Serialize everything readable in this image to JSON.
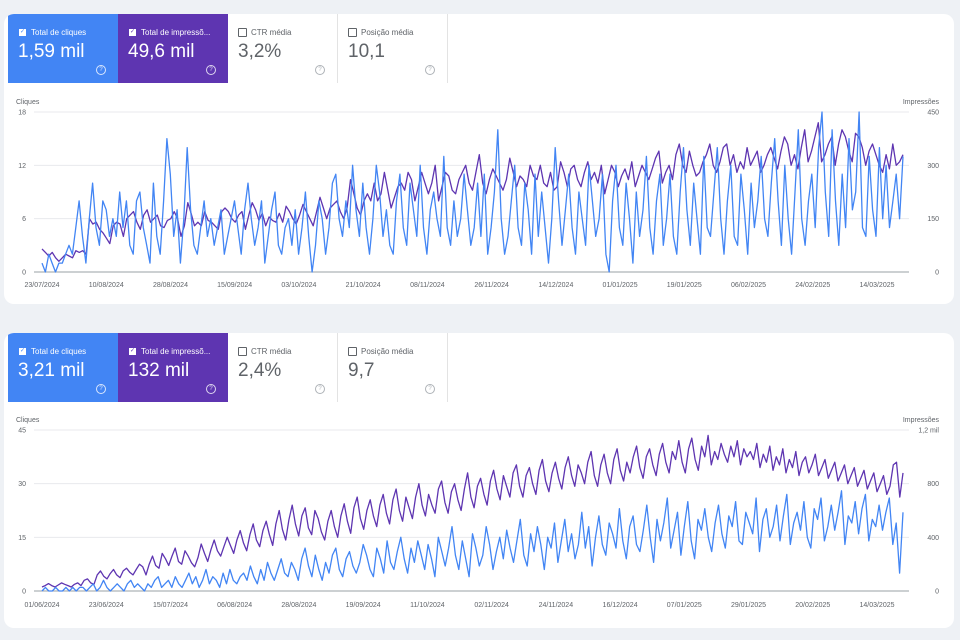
{
  "panels": [
    {
      "cards": [
        {
          "label": "Total de cliques",
          "value": "1,59 mil",
          "checked": true
        },
        {
          "label": "Total de impressõ...",
          "value": "49,6 mil",
          "checked": true
        },
        {
          "label": "CTR média",
          "value": "3,2%",
          "checked": false
        },
        {
          "label": "Posição média",
          "value": "10,1",
          "checked": false
        }
      ]
    },
    {
      "cards": [
        {
          "label": "Total de cliques",
          "value": "3,21 mil",
          "checked": true
        },
        {
          "label": "Total de impressõ...",
          "value": "132 mil",
          "checked": true
        },
        {
          "label": "CTR média",
          "value": "2,4%",
          "checked": false
        },
        {
          "label": "Posição média",
          "value": "9,7",
          "checked": false
        }
      ]
    }
  ],
  "colors": {
    "clicks": "#4285f4",
    "impressions": "#5e35b1",
    "grid": "#e8eaed"
  },
  "chart_data": [
    {
      "type": "line",
      "left_axis_label": "Cliques",
      "right_axis_label": "Impressões",
      "y_left_ticks": [
        "0",
        "6",
        "12",
        "18"
      ],
      "y_right_ticks": [
        "0",
        "150",
        "300",
        "450"
      ],
      "ylim_left": [
        0,
        18
      ],
      "ylim_right": [
        0,
        450
      ],
      "x_tick_labels": [
        "23/07/2024",
        "10/08/2024",
        "28/08/2024",
        "15/09/2024",
        "03/10/2024",
        "21/10/2024",
        "08/11/2024",
        "26/11/2024",
        "14/12/2024",
        "01/01/2025",
        "19/01/2025",
        "06/02/2025",
        "24/02/2025",
        "14/03/2025"
      ],
      "series": [
        {
          "name": "Cliques",
          "axis": "left",
          "values": [
            1,
            0,
            2,
            1,
            0,
            1,
            1,
            2,
            3,
            2,
            5,
            8,
            4,
            1,
            6,
            10,
            5,
            3,
            8,
            7,
            4,
            6,
            4,
            9,
            5,
            8,
            3,
            2,
            8,
            9,
            5,
            3,
            1,
            10,
            4,
            2,
            8,
            15,
            11,
            4,
            7,
            1,
            6,
            14,
            7,
            3,
            2,
            5,
            8,
            4,
            6,
            3,
            5,
            7,
            2,
            4,
            6,
            8,
            5,
            2,
            7,
            10,
            6,
            3,
            5,
            8,
            1,
            4,
            7,
            9,
            3,
            2,
            5,
            6,
            3,
            7,
            2,
            5,
            9,
            4,
            0,
            3,
            8,
            6,
            2,
            5,
            10,
            11,
            6,
            4,
            8,
            5,
            12,
            7,
            4,
            10,
            5,
            2,
            6,
            12,
            9,
            4,
            7,
            3,
            2,
            8,
            11,
            5,
            3,
            10,
            7,
            4,
            12,
            5,
            2,
            7,
            9,
            6,
            4,
            13,
            5,
            3,
            8,
            4,
            6,
            11,
            7,
            3,
            5,
            10,
            4,
            11,
            2,
            5,
            9,
            16,
            6,
            2,
            4,
            8,
            12,
            5,
            3,
            10,
            7,
            2,
            11,
            4,
            9,
            5,
            1,
            6,
            14,
            8,
            3,
            7,
            11,
            5,
            2,
            9,
            6,
            3,
            12,
            8,
            4,
            6,
            11,
            2,
            0,
            8,
            12,
            5,
            3,
            10,
            6,
            1,
            9,
            4,
            7,
            13,
            5,
            2,
            8,
            11,
            3,
            6,
            11,
            4,
            2,
            9,
            14,
            7,
            3,
            10,
            6,
            2,
            13,
            5,
            4,
            9,
            14,
            6,
            2,
            8,
            12,
            4,
            3,
            11,
            7,
            2,
            10,
            5,
            8,
            13,
            6,
            4,
            10,
            15,
            8,
            3,
            12,
            6,
            2,
            9,
            16,
            6,
            3,
            8,
            11,
            5,
            14,
            18,
            9,
            4,
            16,
            8,
            3,
            11,
            5,
            15,
            7,
            9,
            18,
            5,
            4,
            13,
            7,
            4,
            14,
            6,
            12,
            5,
            8,
            11,
            6,
            13
          ]
        },
        {
          "name": "Impressões",
          "axis": "right",
          "values": [
            65,
            55,
            45,
            55,
            40,
            30,
            40,
            50,
            45,
            40,
            60,
            55,
            60,
            50,
            150,
            135,
            140,
            120,
            110,
            95,
            80,
            130,
            140,
            135,
            100,
            150,
            160,
            170,
            140,
            120,
            160,
            175,
            140,
            150,
            160,
            130,
            125,
            145,
            150,
            170,
            150,
            100,
            130,
            195,
            165,
            130,
            140,
            130,
            170,
            145,
            140,
            130,
            120,
            170,
            180,
            170,
            150,
            140,
            160,
            170,
            120,
            160,
            195,
            175,
            145,
            165,
            130,
            155,
            145,
            140,
            165,
            140,
            185,
            170,
            150,
            135,
            160,
            190,
            170,
            150,
            130,
            170,
            210,
            180,
            150,
            180,
            190,
            200,
            170,
            150,
            180,
            260,
            220,
            180,
            160,
            200,
            220,
            200,
            250,
            200,
            220,
            280,
            230,
            180,
            210,
            240,
            250,
            230,
            280,
            260,
            200,
            240,
            280,
            250,
            220,
            250,
            300,
            200,
            240,
            280,
            270,
            230,
            220,
            260,
            280,
            300,
            250,
            230,
            280,
            330,
            250,
            220,
            260,
            290,
            270,
            250,
            230,
            260,
            320,
            280,
            240,
            270,
            260,
            240,
            300,
            270,
            260,
            300,
            250,
            240,
            280,
            230,
            240,
            310,
            280,
            240,
            290,
            300,
            260,
            240,
            280,
            310,
            260,
            280,
            250,
            300,
            220,
            260,
            300,
            280,
            240,
            270,
            290,
            260,
            310,
            240,
            270,
            300,
            280,
            260,
            290,
            320,
            340,
            250,
            280,
            300,
            260,
            330,
            360,
            300,
            280,
            340,
            300,
            270,
            280,
            310,
            330,
            360,
            300,
            280,
            310,
            350,
            360,
            300,
            330,
            280,
            310,
            290,
            350,
            300,
            320,
            340,
            280,
            300,
            330,
            350,
            320,
            290,
            340,
            380,
            360,
            300,
            330,
            290,
            350,
            400,
            310,
            340,
            380,
            420,
            310,
            330,
            360,
            380,
            300,
            360,
            400,
            380,
            340,
            310,
            390,
            380,
            350,
            300,
            340,
            360,
            330,
            300,
            280,
            330,
            290,
            360,
            300,
            310,
            330
          ]
        }
      ]
    },
    {
      "type": "line",
      "left_axis_label": "Cliques",
      "right_axis_label": "Impressões",
      "y_left_ticks": [
        "0",
        "15",
        "30",
        "45"
      ],
      "y_right_ticks": [
        "0",
        "400",
        "800",
        "1,2 mil"
      ],
      "ylim_left": [
        0,
        45
      ],
      "ylim_right": [
        0,
        1200
      ],
      "x_tick_labels": [
        "01/06/2024",
        "23/06/2024",
        "15/07/2024",
        "06/08/2024",
        "28/08/2024",
        "19/09/2024",
        "11/10/2024",
        "02/11/2024",
        "24/11/2024",
        "16/12/2024",
        "07/01/2025",
        "29/01/2025",
        "20/02/2025",
        "14/03/2025"
      ],
      "series": [
        {
          "name": "Cliques",
          "axis": "left",
          "values": [
            0,
            1,
            0,
            0,
            1,
            0,
            0,
            1,
            0,
            1,
            0,
            1,
            1,
            0,
            1,
            2,
            0,
            1,
            3,
            1,
            0,
            1,
            2,
            1,
            0,
            2,
            3,
            1,
            2,
            1,
            0,
            2,
            1,
            3,
            4,
            1,
            2,
            3,
            1,
            4,
            2,
            1,
            3,
            5,
            2,
            4,
            1,
            3,
            6,
            2,
            4,
            3,
            1,
            5,
            2,
            6,
            3,
            2,
            4,
            5,
            3,
            7,
            4,
            2,
            6,
            3,
            8,
            5,
            3,
            6,
            9,
            5,
            4,
            8,
            6,
            3,
            9,
            12,
            7,
            4,
            10,
            6,
            3,
            8,
            5,
            10,
            12,
            6,
            4,
            9,
            11,
            7,
            5,
            8,
            13,
            10,
            6,
            4,
            12,
            9,
            5,
            14,
            8,
            6,
            11,
            15,
            9,
            5,
            12,
            8,
            14,
            10,
            6,
            13,
            9,
            4,
            15,
            11,
            7,
            12,
            18,
            10,
            6,
            14,
            9,
            4,
            16,
            12,
            7,
            10,
            18,
            13,
            6,
            11,
            15,
            9,
            17,
            12,
            8,
            14,
            20,
            10,
            7,
            16,
            11,
            18,
            13,
            6,
            15,
            12,
            19,
            8,
            14,
            20,
            11,
            16,
            9,
            13,
            22,
            12,
            18,
            7,
            15,
            21,
            13,
            10,
            19,
            16,
            12,
            23,
            14,
            9,
            18,
            21,
            13,
            11,
            17,
            24,
            15,
            8,
            20,
            14,
            19,
            26,
            12,
            17,
            22,
            10,
            18,
            25,
            14,
            9,
            20,
            17,
            23,
            15,
            11,
            19,
            24,
            16,
            12,
            21,
            18,
            25,
            14,
            13,
            22,
            19,
            16,
            26,
            11,
            20,
            23,
            15,
            18,
            24,
            14,
            21,
            27,
            13,
            19,
            22,
            17,
            25,
            15,
            12,
            23,
            20,
            26,
            14,
            18,
            24,
            17,
            22,
            28,
            13,
            21,
            19,
            25,
            16,
            23,
            27,
            14,
            20,
            18,
            24,
            17,
            22,
            26,
            13,
            19,
            5,
            22
          ]
        },
        {
          "name": "Impressões",
          "axis": "right",
          "values": [
            30,
            40,
            55,
            40,
            30,
            45,
            60,
            50,
            40,
            30,
            50,
            60,
            40,
            80,
            90,
            60,
            50,
            120,
            150,
            110,
            90,
            130,
            160,
            120,
            100,
            150,
            170,
            140,
            120,
            160,
            200,
            180,
            120,
            200,
            260,
            190,
            170,
            280,
            240,
            190,
            260,
            320,
            220,
            200,
            300,
            260,
            210,
            180,
            250,
            350,
            280,
            220,
            310,
            380,
            300,
            260,
            330,
            400,
            340,
            280,
            380,
            450,
            360,
            300,
            420,
            500,
            380,
            330,
            450,
            520,
            420,
            340,
            500,
            600,
            460,
            380,
            530,
            640,
            500,
            410,
            560,
            620,
            470,
            420,
            600,
            540,
            440,
            380,
            520,
            600,
            480,
            400,
            560,
            650,
            520,
            430,
            620,
            700,
            540,
            460,
            600,
            680,
            560,
            480,
            640,
            720,
            580,
            500,
            680,
            760,
            600,
            520,
            700,
            620,
            540,
            700,
            800,
            640,
            560,
            720,
            640,
            580,
            760,
            820,
            660,
            580,
            740,
            800,
            680,
            600,
            760,
            880,
            700,
            620,
            780,
            840,
            720,
            640,
            820,
            900,
            760,
            680,
            860,
            780,
            700,
            880,
            940,
            780,
            700,
            860,
            920,
            800,
            720,
            900,
            980,
            820,
            740,
            880,
            960,
            840,
            760,
            920,
            1000,
            860,
            780,
            940,
            880,
            800,
            960,
            1040,
            860,
            780,
            940,
            1020,
            880,
            800,
            980,
            1060,
            900,
            820,
            960,
            880,
            1000,
            1080,
            920,
            840,
            1000,
            1060,
            940,
            860,
            1020,
            1100,
            960,
            880,
            1040,
            980,
            1120,
            960,
            880,
            1060,
            1140,
            980,
            900,
            1080,
            1000,
            1160,
            940,
            1040,
            980,
            1100,
            1020,
            960,
            1080,
            1000,
            1120,
            940,
            1060,
            1000,
            1040,
            980,
            1100,
            920,
            1020,
            960,
            1080,
            900,
            1000,
            940,
            1060,
            880,
            980,
            920,
            1040,
            860,
            960,
            1000,
            880,
            940,
            1020,
            860,
            920,
            980,
            840,
            900,
            960,
            820,
            880,
            940,
            800,
            860,
            920,
            780,
            840,
            900,
            760,
            820,
            880,
            740,
            800,
            860,
            720,
            780,
            940,
            960,
            700,
            880
          ]
        }
      ]
    }
  ]
}
